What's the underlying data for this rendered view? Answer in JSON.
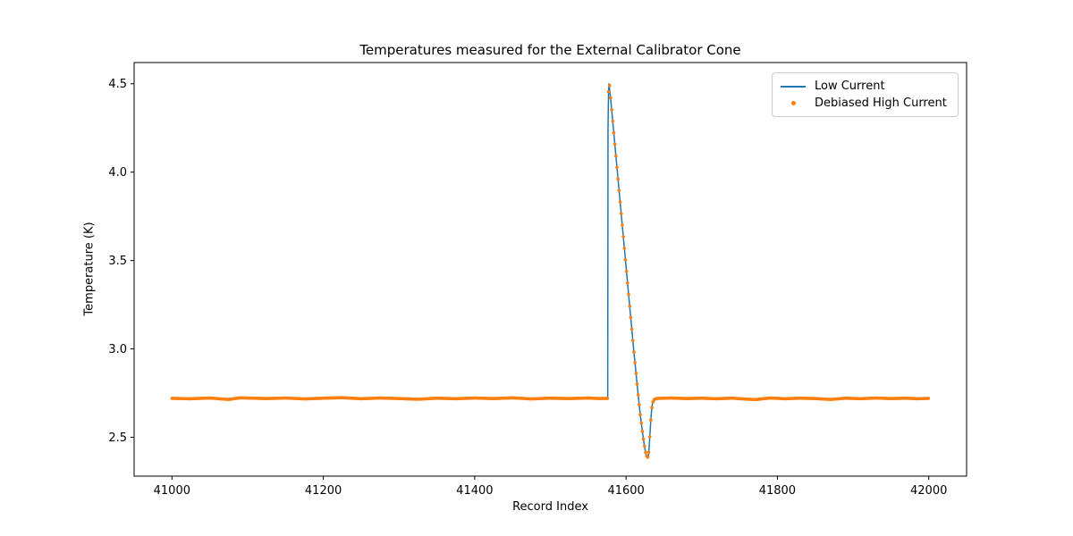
{
  "chart_data": {
    "type": "line+scatter",
    "title": "Temperatures measured for the External Calibrator Cone",
    "xlabel": "Record Index",
    "ylabel": "Temperature (K)",
    "xlim": [
      40950,
      42050
    ],
    "ylim": [
      2.28,
      4.62
    ],
    "xticks": [
      41000,
      41200,
      41400,
      41600,
      41800,
      42000
    ],
    "xtick_labels": [
      "41000",
      "41200",
      "41400",
      "41600",
      "41800",
      "42000"
    ],
    "yticks": [
      2.5,
      3.0,
      3.5,
      4.0,
      4.5
    ],
    "ytick_labels": [
      "2.5",
      "3.0",
      "3.5",
      "4.0",
      "4.5"
    ],
    "grid": false,
    "axes_color": "#000000",
    "legend": {
      "position": "upper right",
      "border_color": "#cccccc",
      "background": "#ffffff"
    },
    "series": [
      {
        "name": "Low Current",
        "type": "line",
        "color": "#1f77b4",
        "line_width": 1.5,
        "points": [
          [
            41000,
            2.72
          ],
          [
            41025,
            2.718
          ],
          [
            41050,
            2.722
          ],
          [
            41075,
            2.714
          ],
          [
            41090,
            2.723
          ],
          [
            41125,
            2.719
          ],
          [
            41150,
            2.722
          ],
          [
            41175,
            2.717
          ],
          [
            41200,
            2.721
          ],
          [
            41225,
            2.724
          ],
          [
            41250,
            2.718
          ],
          [
            41275,
            2.722
          ],
          [
            41300,
            2.719
          ],
          [
            41325,
            2.715
          ],
          [
            41350,
            2.721
          ],
          [
            41375,
            2.718
          ],
          [
            41400,
            2.722
          ],
          [
            41425,
            2.719
          ],
          [
            41450,
            2.723
          ],
          [
            41475,
            2.717
          ],
          [
            41500,
            2.721
          ],
          [
            41525,
            2.719
          ],
          [
            41550,
            2.722
          ],
          [
            41565,
            2.719
          ],
          [
            41575.8,
            2.72
          ],
          [
            41576.2,
            4.25
          ],
          [
            41576.6,
            4.38
          ],
          [
            41577,
            4.46
          ],
          [
            41577.4,
            4.5
          ],
          [
            41580,
            4.4
          ],
          [
            41583,
            4.26
          ],
          [
            41586,
            4.12
          ],
          [
            41589,
            3.98
          ],
          [
            41592,
            3.84
          ],
          [
            41595,
            3.7
          ],
          [
            41598,
            3.56
          ],
          [
            41601,
            3.42
          ],
          [
            41604,
            3.28
          ],
          [
            41607,
            3.14
          ],
          [
            41610,
            3.0
          ],
          [
            41613,
            2.87
          ],
          [
            41616,
            2.74
          ],
          [
            41619,
            2.62
          ],
          [
            41622,
            2.52
          ],
          [
            41624,
            2.46
          ],
          [
            41626,
            2.41
          ],
          [
            41628,
            2.385
          ],
          [
            41629.5,
            2.39
          ],
          [
            41630.5,
            2.44
          ],
          [
            41631.5,
            2.51
          ],
          [
            41632.5,
            2.58
          ],
          [
            41633.5,
            2.64
          ],
          [
            41634.5,
            2.68
          ],
          [
            41635.5,
            2.7
          ],
          [
            41637,
            2.712
          ],
          [
            41639,
            2.718
          ],
          [
            41642,
            2.72
          ],
          [
            41660,
            2.722
          ],
          [
            41680,
            2.719
          ],
          [
            41700,
            2.721
          ],
          [
            41720,
            2.718
          ],
          [
            41740,
            2.721
          ],
          [
            41770,
            2.713
          ],
          [
            41790,
            2.722
          ],
          [
            41810,
            2.718
          ],
          [
            41830,
            2.721
          ],
          [
            41850,
            2.719
          ],
          [
            41870,
            2.714
          ],
          [
            41890,
            2.721
          ],
          [
            41910,
            2.718
          ],
          [
            41930,
            2.722
          ],
          [
            41950,
            2.719
          ],
          [
            41970,
            2.721
          ],
          [
            41985,
            2.718
          ],
          [
            42000,
            2.72
          ]
        ]
      },
      {
        "name": "Debiased High Current",
        "type": "scatter",
        "color": "#ff7f0e",
        "marker": "dot",
        "marker_radius": 1.8,
        "sample_step_records": 1.4,
        "points": [
          [
            41000,
            2.72
          ],
          [
            41025,
            2.718
          ],
          [
            41050,
            2.722
          ],
          [
            41075,
            2.714
          ],
          [
            41090,
            2.723
          ],
          [
            41125,
            2.719
          ],
          [
            41150,
            2.722
          ],
          [
            41175,
            2.717
          ],
          [
            41200,
            2.721
          ],
          [
            41225,
            2.724
          ],
          [
            41250,
            2.718
          ],
          [
            41275,
            2.722
          ],
          [
            41300,
            2.719
          ],
          [
            41325,
            2.715
          ],
          [
            41350,
            2.721
          ],
          [
            41375,
            2.718
          ],
          [
            41400,
            2.722
          ],
          [
            41425,
            2.719
          ],
          [
            41450,
            2.723
          ],
          [
            41475,
            2.717
          ],
          [
            41500,
            2.721
          ],
          [
            41525,
            2.719
          ],
          [
            41550,
            2.722
          ],
          [
            41565,
            2.719
          ],
          [
            41575.8,
            2.72
          ],
          [
            41576.2,
            4.28
          ],
          [
            41576.6,
            4.42
          ],
          [
            41577,
            4.49
          ],
          [
            41577.4,
            4.53
          ],
          [
            41580,
            4.4
          ],
          [
            41583,
            4.26
          ],
          [
            41586,
            4.12
          ],
          [
            41589,
            3.98
          ],
          [
            41592,
            3.84
          ],
          [
            41595,
            3.7
          ],
          [
            41598,
            3.56
          ],
          [
            41601,
            3.42
          ],
          [
            41604,
            3.28
          ],
          [
            41607,
            3.14
          ],
          [
            41610,
            3.0
          ],
          [
            41613,
            2.87
          ],
          [
            41616,
            2.74
          ],
          [
            41619,
            2.62
          ],
          [
            41622,
            2.52
          ],
          [
            41624,
            2.46
          ],
          [
            41626,
            2.41
          ],
          [
            41628,
            2.385
          ],
          [
            41629.5,
            2.39
          ],
          [
            41630.5,
            2.44
          ],
          [
            41631.5,
            2.51
          ],
          [
            41632.5,
            2.58
          ],
          [
            41633.5,
            2.64
          ],
          [
            41634.5,
            2.68
          ],
          [
            41635.5,
            2.7
          ],
          [
            41637,
            2.712
          ],
          [
            41639,
            2.718
          ],
          [
            41642,
            2.72
          ],
          [
            41660,
            2.722
          ],
          [
            41680,
            2.719
          ],
          [
            41700,
            2.721
          ],
          [
            41720,
            2.718
          ],
          [
            41740,
            2.721
          ],
          [
            41770,
            2.713
          ],
          [
            41790,
            2.722
          ],
          [
            41810,
            2.718
          ],
          [
            41830,
            2.721
          ],
          [
            41850,
            2.719
          ],
          [
            41870,
            2.714
          ],
          [
            41890,
            2.721
          ],
          [
            41910,
            2.718
          ],
          [
            41930,
            2.722
          ],
          [
            41950,
            2.719
          ],
          [
            41970,
            2.721
          ],
          [
            41985,
            2.718
          ],
          [
            42000,
            2.72
          ]
        ]
      }
    ]
  }
}
